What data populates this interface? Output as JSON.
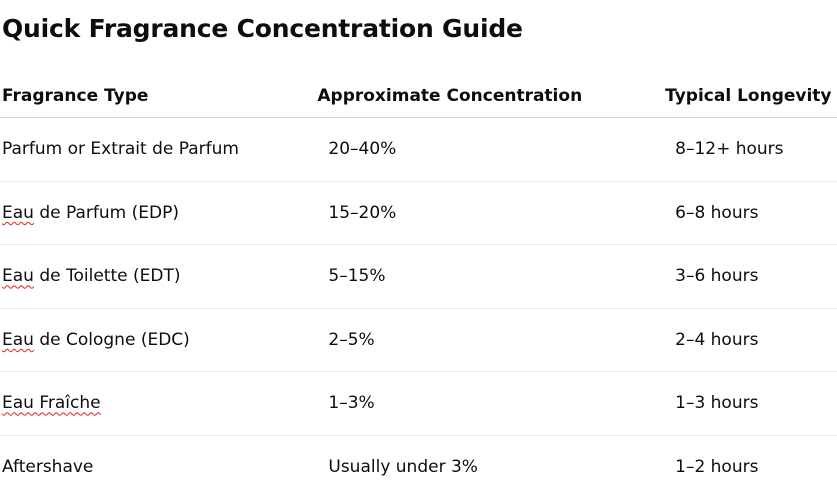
{
  "title": "Quick Fragrance Concentration Guide",
  "table": {
    "headers": [
      "Fragrance Type",
      "Approximate Concentration",
      "Typical Longevity"
    ],
    "rows": [
      {
        "type_prefix": "",
        "type_word": "",
        "type_rest": "Parfum or Extrait de Parfum",
        "concentration": "20–40%",
        "longevity": "8–12+ hours"
      },
      {
        "type_prefix": "",
        "type_word": "Eau",
        "type_rest": " de Parfum (EDP)",
        "concentration": "15–20%",
        "longevity": "6–8 hours"
      },
      {
        "type_prefix": "",
        "type_word": "Eau",
        "type_rest": " de Toilette (EDT)",
        "concentration": "5–15%",
        "longevity": "3–6 hours"
      },
      {
        "type_prefix": "",
        "type_word": "Eau",
        "type_rest": " de Cologne (EDC)",
        "concentration": "2–5%",
        "longevity": "2–4 hours"
      },
      {
        "type_prefix": "",
        "type_word": "Eau Fraîche",
        "type_rest": "",
        "concentration": "1–3%",
        "longevity": "1–3 hours"
      },
      {
        "type_prefix": "",
        "type_word": "",
        "type_rest": "Aftershave",
        "concentration": "Usually under 3%",
        "longevity": "1–2 hours"
      }
    ]
  }
}
